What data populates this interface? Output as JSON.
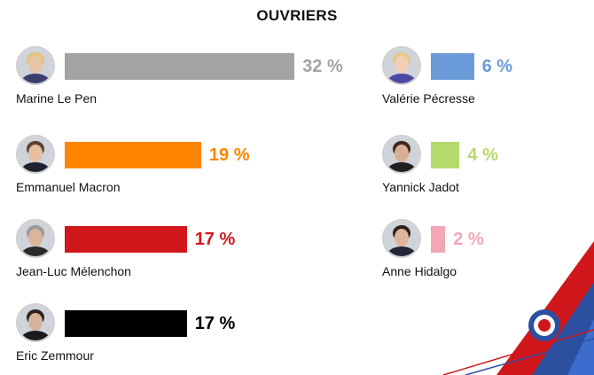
{
  "chart_data": {
    "type": "bar",
    "title": "OUVRIERS",
    "unit": "%",
    "series": [
      {
        "name": "Marine Le Pen",
        "value": 32,
        "label": "32 %",
        "color": "#a3a3a3",
        "label_color": "#a3a3a3",
        "skin": "#e8c4a8",
        "hair": "#e2c47c",
        "cloth": "#3a3f6e"
      },
      {
        "name": "Emmanuel Macron",
        "value": 19,
        "label": "19 %",
        "color": "#ff8400",
        "label_color": "#ff8400",
        "skin": "#e6bfa2",
        "hair": "#5a4030",
        "cloth": "#1d2233"
      },
      {
        "name": "Jean-Luc Mélenchon",
        "value": 17,
        "label": "17 %",
        "color": "#d0171c",
        "label_color": "#d0171c",
        "skin": "#dcb49a",
        "hair": "#9a9a9a",
        "cloth": "#2a2a2a"
      },
      {
        "name": "Eric Zemmour",
        "value": 17,
        "label": "17 %",
        "color": "#000000",
        "label_color": "#000000",
        "skin": "#d9b49c",
        "hair": "#2b2220",
        "cloth": "#1a1a1a"
      },
      {
        "name": "Valérie Pécresse",
        "value": 6,
        "label": "6 %",
        "color": "#6b9bd8",
        "label_color": "#6b9bd8",
        "skin": "#efcfb8",
        "hair": "#e6c98a",
        "cloth": "#4b49a8"
      },
      {
        "name": "Yannick Jadot",
        "value": 4,
        "label": "4 %",
        "color": "#b6d96c",
        "label_color": "#b6d96c",
        "skin": "#d8ae94",
        "hair": "#3b2a20",
        "cloth": "#202020"
      },
      {
        "name": "Anne Hidalgo",
        "value": 2,
        "label": "2 %",
        "color": "#f2a6b6",
        "label_color": "#f2a6b6",
        "skin": "#dfb49b",
        "hair": "#2a2120",
        "cloth": "#26263a"
      }
    ]
  },
  "decoration": {
    "red": "#d0171c",
    "blue": "#2c4fa0",
    "light_blue": "#3c6ccd",
    "white": "#ffffff"
  }
}
